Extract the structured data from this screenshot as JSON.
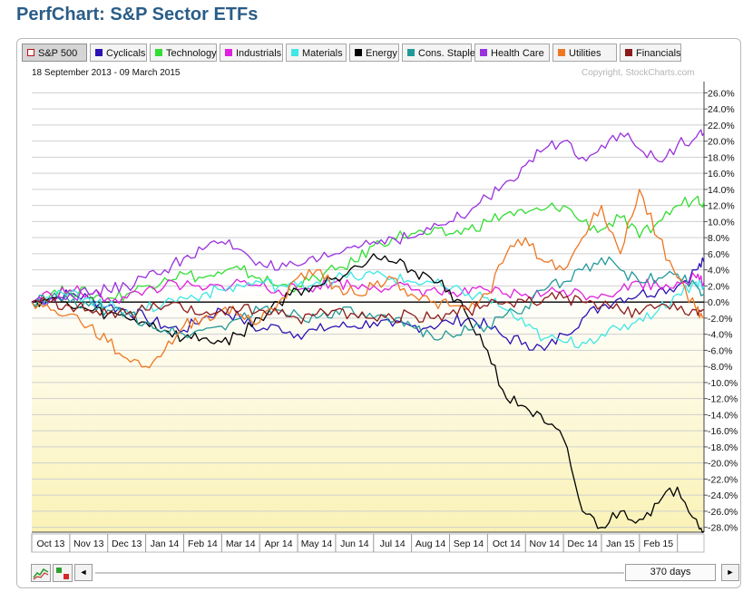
{
  "page": {
    "title": "PerfChart: S&P Sector ETFs"
  },
  "legend": {
    "items": [
      {
        "label": "S&P 500",
        "color": "#ffffff",
        "active": true
      },
      {
        "label": "Cyclicals",
        "color": "#2a12b5"
      },
      {
        "label": "Technology",
        "color": "#33dd33"
      },
      {
        "label": "Industrials",
        "color": "#e020e0"
      },
      {
        "label": "Materials",
        "color": "#3ee6e6"
      },
      {
        "label": "Energy",
        "color": "#000000"
      },
      {
        "label": "Cons. Staples",
        "color": "#229999"
      },
      {
        "label": "Health Care",
        "color": "#9932dd"
      },
      {
        "label": "Utilities",
        "color": "#ee7722"
      },
      {
        "label": "Financials",
        "color": "#8b1a1a"
      }
    ]
  },
  "header": {
    "date_range": "18 September 2013 - 09 March 2015",
    "copyright": "Copyright, StockCharts.com"
  },
  "controls": {
    "days_label": "370 days",
    "chart_type_icon": "line-chart-icon",
    "color_toggle_icon": "bar-color-icon",
    "scroll_left_icon": "◄",
    "scroll_right_icon": "►"
  },
  "chart_data": {
    "type": "line",
    "title": "PerfChart: S&P Sector ETFs",
    "date_range": "18 September 2013 - 09 March 2015",
    "x_tick_labels": [
      "Oct 13",
      "Nov 13",
      "Dec 13",
      "Jan 14",
      "Feb 14",
      "Mar 14",
      "Apr 14",
      "May 14",
      "Jun 14",
      "Jul 14",
      "Aug 14",
      "Sep 14",
      "Oct 14",
      "Nov 14",
      "Dec 14",
      "Jan 15",
      "Feb 15"
    ],
    "xlim": [
      0,
      17.7
    ],
    "y_tick_labels": [
      "26.0%",
      "24.0%",
      "22.0%",
      "20.0%",
      "18.0%",
      "16.0%",
      "14.0%",
      "12.0%",
      "10.0%",
      "8.0%",
      "6.0%",
      "4.0%",
      "2.0%",
      "0.0%",
      "-2.0%",
      "-4.0%",
      "-6.0%",
      "-8.0%",
      "-10.0%",
      "-12.0%",
      "-14.0%",
      "-16.0%",
      "-18.0%",
      "-20.0%",
      "-22.0%",
      "-24.0%",
      "-26.0%",
      "-28.0%"
    ],
    "ylim": [
      -28.6,
      27.4
    ],
    "grid": true,
    "y_axis_side": "right",
    "baseline": 0,
    "series": [
      {
        "name": "Cyclicals",
        "color": "#2a12b5",
        "x": [
          0,
          0.5,
          1,
          1.5,
          2,
          2.5,
          3,
          3.5,
          4,
          4.5,
          5,
          5.5,
          6,
          6.5,
          7,
          7.5,
          8,
          8.5,
          9,
          9.5,
          10,
          10.5,
          11,
          11.5,
          12,
          12.5,
          13,
          13.5,
          14,
          14.5,
          15,
          15.5,
          16,
          16.5,
          17,
          17.5,
          17.7
        ],
        "y": [
          0,
          0.5,
          1,
          0.5,
          -0.5,
          -1,
          -2,
          -3,
          -3.5,
          -2,
          -1,
          -2,
          -3.5,
          -3,
          -4,
          -3.5,
          -3,
          -3,
          -2.5,
          -3,
          -3,
          -3,
          -2.5,
          -2,
          -3,
          -4.5,
          -5,
          -6,
          -4,
          -2,
          -0.5,
          0.5,
          1,
          1.5,
          2,
          4,
          5
        ]
      },
      {
        "name": "Technology",
        "color": "#33dd33",
        "x": [
          0,
          0.5,
          1,
          1.5,
          2,
          2.5,
          3,
          3.5,
          4,
          4.5,
          5,
          5.5,
          6,
          6.5,
          7,
          7.5,
          8,
          8.5,
          9,
          9.5,
          10,
          10.5,
          11,
          11.5,
          12,
          12.5,
          13,
          13.5,
          14,
          14.5,
          15,
          15.5,
          16,
          16.5,
          17,
          17.5,
          17.7
        ],
        "y": [
          0,
          1,
          1.5,
          1,
          0.5,
          1,
          2,
          3,
          3.5,
          3,
          3.5,
          4,
          3,
          2,
          2,
          3,
          4,
          5,
          7,
          8,
          8.5,
          8.5,
          8.5,
          9,
          10,
          11,
          11,
          11.5,
          12,
          10,
          9,
          10.5,
          8,
          10,
          12,
          13,
          12.5
        ]
      },
      {
        "name": "Industrials",
        "color": "#e020e0",
        "x": [
          0,
          0.5,
          1,
          1.5,
          2,
          2.5,
          3,
          3.5,
          4,
          4.5,
          5,
          5.5,
          6,
          6.5,
          7,
          7.5,
          8,
          8.5,
          9,
          9.5,
          10,
          10.5,
          11,
          11.5,
          12,
          12.5,
          13,
          13.5,
          14,
          14.5,
          15,
          15.5,
          16,
          16.5,
          17,
          17.5,
          17.7
        ],
        "y": [
          0,
          1,
          1.5,
          1,
          0.5,
          0.5,
          1.5,
          2,
          2,
          1.5,
          2,
          2.5,
          2,
          1.5,
          1.5,
          2,
          2.5,
          2,
          2,
          2,
          1.5,
          1.5,
          1,
          1,
          1.5,
          1,
          1,
          1,
          1.5,
          1,
          1,
          1.5,
          2.5,
          2,
          2.5,
          3,
          2.5
        ]
      },
      {
        "name": "Materials",
        "color": "#3ee6e6",
        "x": [
          0,
          0.5,
          1,
          1.5,
          2,
          2.5,
          3,
          3.5,
          4,
          4.5,
          5,
          5.5,
          6,
          6.5,
          7,
          7.5,
          8,
          8.5,
          9,
          9.5,
          10,
          10.5,
          11,
          11.5,
          12,
          12.5,
          13,
          13.5,
          14,
          14.5,
          15,
          15.5,
          16,
          16.5,
          17,
          17.5,
          17.7
        ],
        "y": [
          0,
          0.5,
          1,
          0.5,
          -0.5,
          -1,
          -1,
          0,
          0.5,
          1,
          1.5,
          2,
          2.5,
          2,
          2,
          2.5,
          3,
          3,
          3.5,
          3,
          2.5,
          2.5,
          1.5,
          1,
          0.5,
          -1,
          -3,
          -4.5,
          -5,
          -5,
          -4,
          -3.5,
          -2,
          -1,
          1,
          2.5,
          2
        ]
      },
      {
        "name": "Energy",
        "color": "#000000",
        "x": [
          0,
          0.5,
          1,
          1.5,
          2,
          2.5,
          3,
          3.5,
          4,
          4.5,
          5,
          5.5,
          6,
          6.5,
          7,
          7.5,
          8,
          8.5,
          9,
          9.5,
          10,
          10.5,
          11,
          11.5,
          12,
          12.5,
          13,
          13.5,
          14,
          14.5,
          15,
          15.5,
          16,
          16.5,
          17,
          17.5,
          17.7
        ],
        "y": [
          0,
          0.5,
          -0.5,
          -1,
          -1.5,
          -2,
          -2.5,
          -3.5,
          -4.5,
          -4.5,
          -5,
          -4,
          -2,
          0,
          1.5,
          2,
          3,
          4.5,
          6,
          5,
          4,
          3,
          1.5,
          -2,
          -6,
          -12,
          -13,
          -15,
          -17,
          -26,
          -28,
          -26,
          -27,
          -25,
          -23,
          -27,
          -28.5
        ]
      },
      {
        "name": "Cons. Staples",
        "color": "#229999",
        "x": [
          0,
          0.5,
          1,
          1.5,
          2,
          2.5,
          3,
          3.5,
          4,
          4.5,
          5,
          5.5,
          6,
          6.5,
          7,
          7.5,
          8,
          8.5,
          9,
          9.5,
          10,
          10.5,
          11,
          11.5,
          12,
          12.5,
          13,
          13.5,
          14,
          14.5,
          15,
          15.5,
          16,
          16.5,
          17,
          17.5,
          17.7
        ],
        "y": [
          0,
          0.5,
          0,
          -0.5,
          -1,
          -1.5,
          -2.5,
          -3.5,
          -4,
          -3.5,
          -3,
          -2,
          -1,
          -1,
          -1.5,
          -2,
          -1,
          -1.5,
          -2,
          -2.5,
          -3,
          -4,
          -4,
          -3.5,
          -3,
          -1.5,
          -0.5,
          1.5,
          2.5,
          4,
          5.5,
          4,
          2.5,
          3,
          3.5,
          2,
          1
        ]
      },
      {
        "name": "Health Care",
        "color": "#9932dd",
        "x": [
          0,
          0.5,
          1,
          1.5,
          2,
          2.5,
          3,
          3.5,
          4,
          4.5,
          5,
          5.5,
          6,
          6.5,
          7,
          7.5,
          8,
          8.5,
          9,
          9.5,
          10,
          10.5,
          11,
          11.5,
          12,
          12.5,
          13,
          13.5,
          14,
          14.5,
          15,
          15.5,
          16,
          16.5,
          17,
          17.5,
          17.7
        ],
        "y": [
          0,
          0.5,
          1,
          1,
          1.5,
          2,
          3,
          4,
          5.5,
          6.5,
          7.5,
          6.5,
          5,
          4,
          4.5,
          5,
          6,
          7,
          7.5,
          8,
          8,
          9,
          10,
          11,
          13,
          15,
          17,
          19,
          20,
          18,
          19.5,
          21,
          19,
          17.5,
          19.5,
          20.5,
          21
        ]
      },
      {
        "name": "Utilities",
        "color": "#ee7722",
        "x": [
          0,
          0.5,
          1,
          1.5,
          2,
          2.5,
          3,
          3.5,
          4,
          4.5,
          5,
          5.5,
          6,
          6.5,
          7,
          7.5,
          8,
          8.5,
          9,
          9.5,
          10,
          10.5,
          11,
          11.5,
          12,
          12.5,
          13,
          13.5,
          14,
          14.5,
          15,
          15.5,
          16,
          16.5,
          17,
          17.5,
          17.7
        ],
        "y": [
          0,
          -1,
          -1.5,
          -3,
          -5,
          -7,
          -8,
          -6,
          -3,
          -2,
          -1,
          -1.5,
          -2.5,
          0,
          3,
          4,
          2,
          1,
          2,
          3,
          1,
          0,
          -0.5,
          -1,
          1,
          6,
          8,
          5,
          4,
          8,
          12,
          6,
          14,
          8,
          3,
          -1,
          -2
        ]
      },
      {
        "name": "Financials",
        "color": "#8b1a1a",
        "x": [
          0,
          0.5,
          1,
          1.5,
          2,
          2.5,
          3,
          3.5,
          4,
          4.5,
          5,
          5.5,
          6,
          6.5,
          7,
          7.5,
          8,
          8.5,
          9,
          9.5,
          10,
          10.5,
          11,
          11.5,
          12,
          12.5,
          13,
          13.5,
          14,
          14.5,
          15,
          15.5,
          16,
          16.5,
          17,
          17.5,
          17.7
        ],
        "y": [
          0,
          0,
          -0.5,
          -1,
          -1.5,
          -1.5,
          -1,
          -0.5,
          -1,
          -1.5,
          -1,
          -1,
          -1,
          -1.5,
          -2,
          -1.5,
          -1,
          -1.5,
          -2,
          -2,
          -1.5,
          -2,
          -1.5,
          -1,
          -0.5,
          0,
          0,
          0.5,
          0.5,
          0,
          -0.5,
          -1,
          -1.5,
          -0.5,
          -1,
          -1,
          -1
        ]
      }
    ]
  }
}
